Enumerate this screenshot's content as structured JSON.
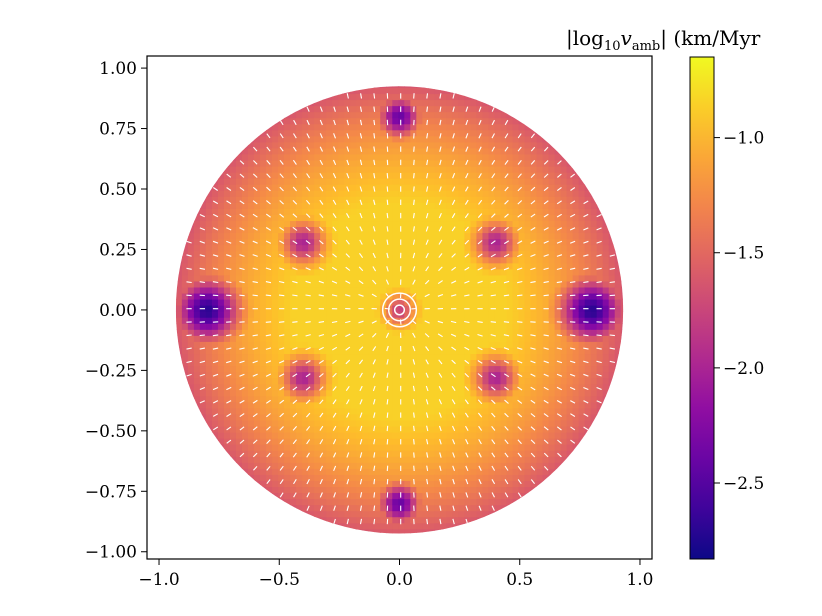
{
  "chart_data": {
    "type": "heatmap",
    "title": "",
    "xlabel": "",
    "ylabel": "",
    "xlim": [
      -1.05,
      1.05
    ],
    "ylim": [
      -1.03,
      1.05
    ],
    "xticks": [
      -1.0,
      -0.5,
      0.0,
      0.5,
      1.0
    ],
    "xtick_labels": [
      "−1.0",
      "−0.5",
      "0.0",
      "0.5",
      "1.0"
    ],
    "yticks": [
      1.0,
      0.75,
      0.5,
      0.25,
      0.0,
      -0.25,
      -0.5,
      -0.75,
      -1.0
    ],
    "ytick_labels": [
      "1.00",
      "0.75",
      "0.50",
      "0.25",
      "0.00",
      "−0.25",
      "−0.50",
      "−0.75",
      "−1.00"
    ],
    "grid": false,
    "disk": {
      "center": [
        0.0,
        0.0
      ],
      "radius": 0.93
    },
    "colormap": "plasma",
    "colorbar": {
      "label_main": "|log",
      "label_sub": "10",
      "label_var": "v",
      "label_var_sub": "amb",
      "label_rest": "| (km/Myr",
      "range": [
        -2.83,
        -0.65
      ],
      "ticks": [
        -1.0,
        -1.5,
        -2.0,
        -2.5
      ],
      "tick_labels": [
        "−1.0",
        "−1.5",
        "−2.0",
        "−2.5"
      ]
    },
    "minima": [
      {
        "x": 0.0,
        "y": 0.8,
        "value": -2.4
      },
      {
        "x": 0.0,
        "y": -0.8,
        "value": -2.4
      },
      {
        "x": -0.4,
        "y": 0.28,
        "value": -2.0
      },
      {
        "x": 0.4,
        "y": 0.28,
        "value": -2.0
      },
      {
        "x": -0.4,
        "y": -0.28,
        "value": -2.0
      },
      {
        "x": 0.4,
        "y": -0.28,
        "value": -2.0
      },
      {
        "x": -0.8,
        "y": 0.0,
        "value": -2.7
      },
      {
        "x": 0.8,
        "y": 0.0,
        "value": -2.7
      },
      {
        "x": 0.0,
        "y": 0.0,
        "value": -1.8
      }
    ],
    "quiver": {
      "color": "#ffffff",
      "pattern": "radial"
    }
  }
}
